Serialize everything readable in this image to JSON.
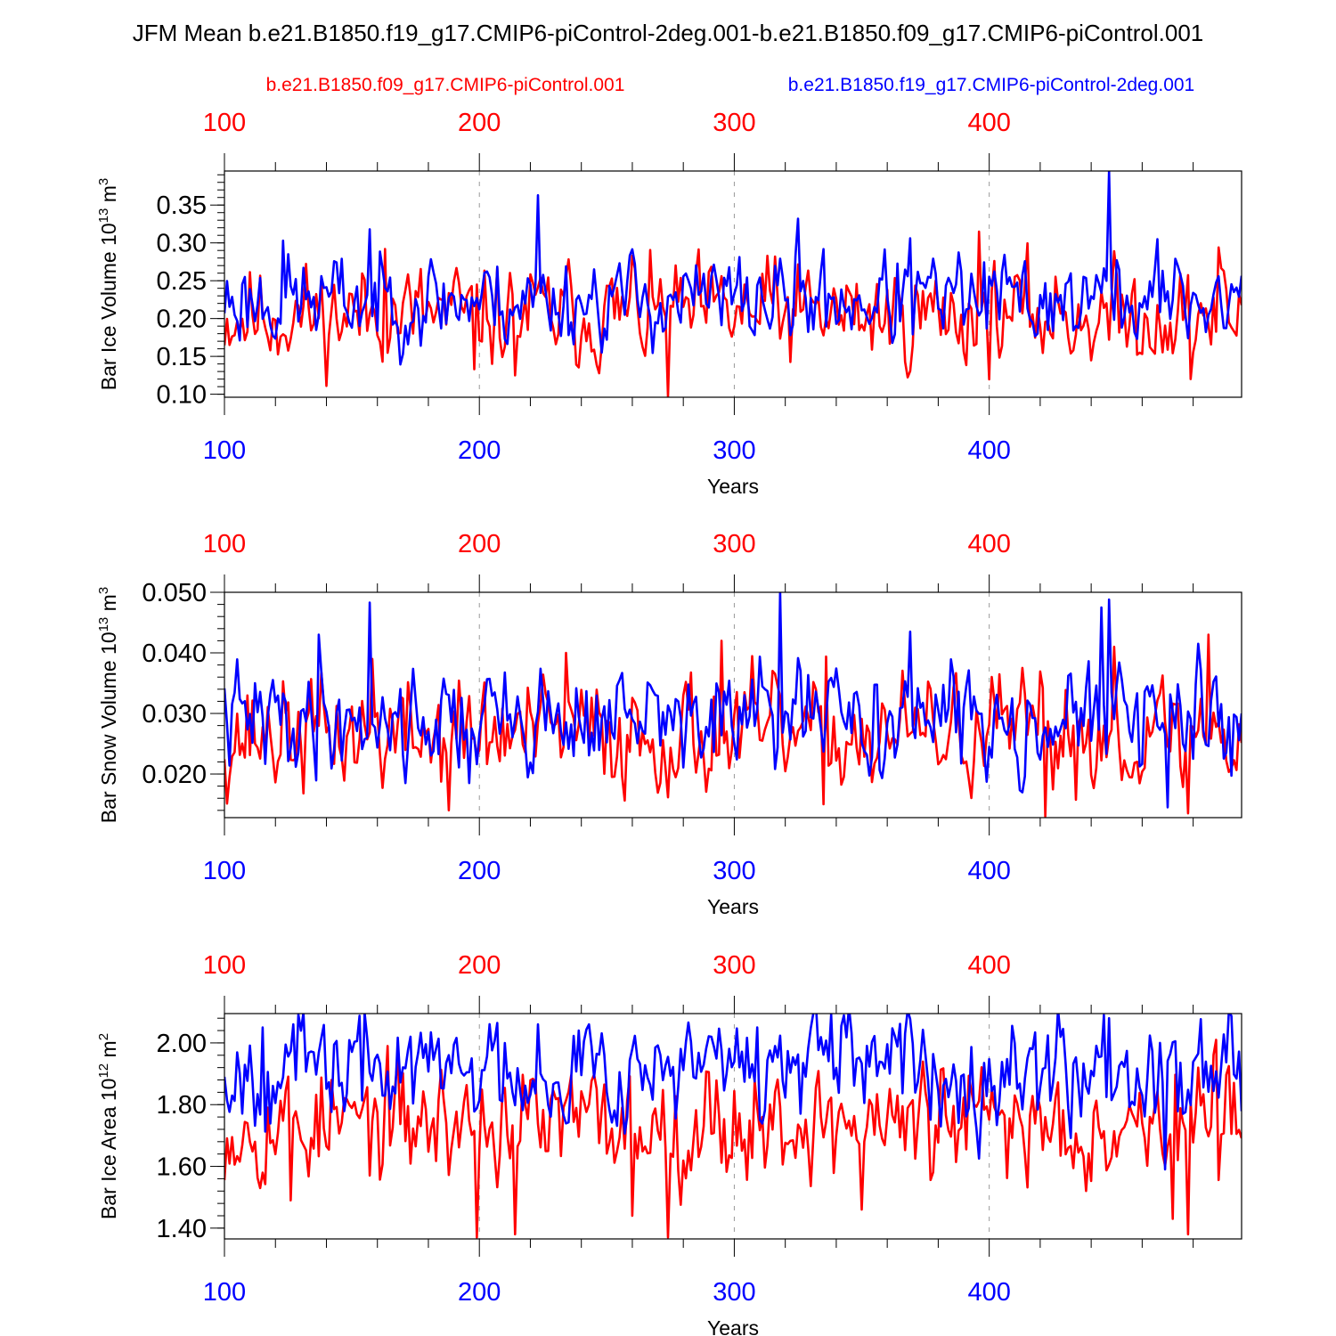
{
  "page_title": "JFM Mean b.e21.B1850.f19_g17.CMIP6-piControl-2deg.001-b.e21.B1850.f09_g17.CMIP6-piControl.001",
  "legend": {
    "red_case": "b.e21.B1850.f09_g17.CMIP6-piControl.001",
    "blue_case": "b.e21.B1850.f19_g17.CMIP6-piControl-2deg.001"
  },
  "colors": {
    "red": "#ff0000",
    "blue": "#0000ff",
    "grid": "#999999"
  },
  "chart_data": [
    {
      "type": "line",
      "ylabel": "Bar Ice Volume",
      "yunits_base": "10",
      "yunits_exp": "13",
      "yunits_unit": "m",
      "yunits_unit_exp": "3",
      "xlabel": "Years",
      "xlim": [
        100,
        499
      ],
      "ylim": [
        0.096,
        0.395
      ],
      "xticks": [
        "100",
        "200",
        "300",
        "400"
      ],
      "yticks": [
        "0.10",
        "0.15",
        "0.20",
        "0.25",
        "0.30",
        "0.35"
      ],
      "series": [
        {
          "name": "b.e21.B1850.f09_g17.CMIP6-piControl.001",
          "color": "red",
          "mean": 0.205,
          "amp": 0.04,
          "seed": 11,
          "peaks": [
            [
              163,
              0.292
            ],
            [
              198,
              0.133
            ],
            [
              214,
              0.125
            ],
            [
              260,
              0.283
            ],
            [
              274,
              0.097
            ],
            [
              316,
              0.282
            ],
            [
              396,
              0.315
            ],
            [
              447,
              0.172
            ],
            [
              479,
              0.12
            ],
            [
              490,
              0.294
            ]
          ]
        },
        {
          "name": "b.e21.B1850.f19_g17.CMIP6-piControl-2deg.001",
          "color": "blue",
          "mean": 0.225,
          "amp": 0.035,
          "seed": 23,
          "peaks": [
            [
              123,
              0.303
            ],
            [
              157,
              0.318
            ],
            [
              223,
              0.363
            ],
            [
              255,
              0.273
            ],
            [
              325,
              0.332
            ],
            [
              369,
              0.306
            ],
            [
              447,
              0.395
            ],
            [
              466,
              0.305
            ]
          ]
        }
      ]
    },
    {
      "type": "line",
      "ylabel": "Bar Snow Volume",
      "yunits_base": "10",
      "yunits_exp": "13",
      "yunits_unit": "m",
      "yunits_unit_exp": "3",
      "xlabel": "Years",
      "xlim": [
        100,
        499
      ],
      "ylim": [
        0.0128,
        0.05
      ],
      "xticks": [
        "100",
        "200",
        "300",
        "400"
      ],
      "yticks": [
        "0.020",
        "0.030",
        "0.040",
        "0.050"
      ],
      "series": [
        {
          "name": "b.e21.B1850.f09_g17.CMIP6-piControl.001",
          "color": "red",
          "mean": 0.0265,
          "amp": 0.0055,
          "seed": 37,
          "peaks": [
            [
              158,
              0.039
            ],
            [
              188,
              0.014
            ],
            [
              234,
              0.04
            ],
            [
              295,
              0.042
            ],
            [
              335,
              0.015
            ],
            [
              422,
              0.013
            ],
            [
              449,
              0.041
            ],
            [
              478,
              0.0135
            ],
            [
              486,
              0.043
            ]
          ]
        },
        {
          "name": "b.e21.B1850.f19_g17.CMIP6-piControl-2deg.001",
          "color": "blue",
          "mean": 0.029,
          "amp": 0.005,
          "seed": 41,
          "peaks": [
            [
              137,
              0.043
            ],
            [
              157,
              0.0483
            ],
            [
              196,
              0.0185
            ],
            [
              318,
              0.05
            ],
            [
              369,
              0.0435
            ],
            [
              444,
              0.0475
            ],
            [
              447,
              0.0488
            ],
            [
              470,
              0.0145
            ]
          ]
        }
      ]
    },
    {
      "type": "line",
      "ylabel": "Bar Ice Area",
      "yunits_base": "10",
      "yunits_exp": "12",
      "yunits_unit": "m",
      "yunits_unit_exp": "2",
      "xlabel": "Years",
      "xlim": [
        100,
        499
      ],
      "ylim": [
        1.365,
        2.095
      ],
      "xticks": [
        "100",
        "200",
        "300",
        "400"
      ],
      "yticks": [
        "1.40",
        "1.60",
        "1.80",
        "2.00"
      ],
      "series": [
        {
          "name": "b.e21.B1850.f09_g17.CMIP6-piControl.001",
          "color": "red",
          "mean": 1.74,
          "amp": 0.11,
          "seed": 53,
          "peaks": [
            [
              126,
              1.49
            ],
            [
              199,
              1.37
            ],
            [
              214,
              1.38
            ],
            [
              260,
              1.44
            ],
            [
              274,
              1.37
            ],
            [
              350,
              1.46
            ],
            [
              472,
              1.43
            ],
            [
              478,
              1.38
            ],
            [
              489,
              2.01
            ]
          ]
        },
        {
          "name": "b.e21.B1850.f19_g17.CMIP6-piControl-2deg.001",
          "color": "blue",
          "mean": 1.92,
          "amp": 0.1,
          "seed": 67,
          "peaks": [
            [
              115,
              2.05
            ],
            [
              127,
              2.06
            ],
            [
              223,
              2.06
            ],
            [
              243,
              2.06
            ],
            [
              309,
              2.05
            ],
            [
              445,
              2.09
            ],
            [
              447,
              2.08
            ],
            [
              469,
              1.59
            ]
          ]
        }
      ]
    }
  ]
}
